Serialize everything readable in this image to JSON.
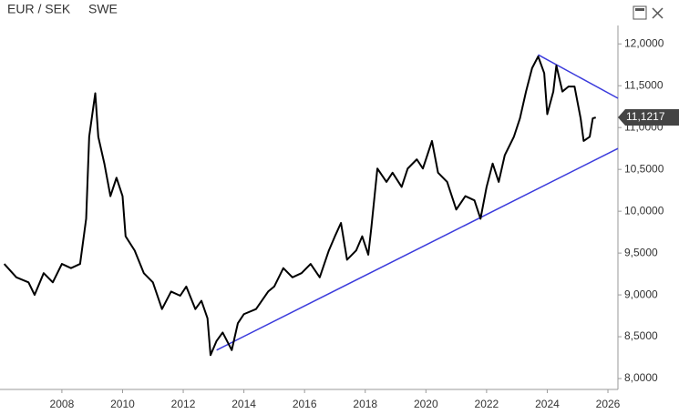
{
  "chart_data": {
    "type": "line",
    "title": "EUR / SEK",
    "subtitle": "SWE",
    "x": [
      2006.1,
      2006.5,
      2006.9,
      2007.1,
      2007.4,
      2007.7,
      2008.0,
      2008.3,
      2008.6,
      2008.8,
      2008.9,
      2009.1,
      2009.2,
      2009.4,
      2009.6,
      2009.8,
      2010.0,
      2010.1,
      2010.4,
      2010.7,
      2011.0,
      2011.3,
      2011.6,
      2011.9,
      2012.1,
      2012.4,
      2012.6,
      2012.8,
      2012.9,
      2013.1,
      2013.3,
      2013.6,
      2013.8,
      2014.0,
      2014.4,
      2014.8,
      2015.0,
      2015.3,
      2015.6,
      2015.9,
      2016.2,
      2016.5,
      2016.8,
      2017.0,
      2017.2,
      2017.4,
      2017.7,
      2017.9,
      2018.1,
      2018.2,
      2018.4,
      2018.7,
      2018.9,
      2019.2,
      2019.4,
      2019.7,
      2019.9,
      2020.0,
      2020.2,
      2020.4,
      2020.7,
      2021.0,
      2021.3,
      2021.6,
      2021.8,
      2022.0,
      2022.2,
      2022.4,
      2022.6,
      2022.9,
      2023.1,
      2023.3,
      2023.5,
      2023.7,
      2023.9,
      2024.0,
      2024.2,
      2024.3,
      2024.5,
      2024.7,
      2024.9,
      2025.1,
      2025.2,
      2025.4,
      2025.5,
      2025.6
    ],
    "series": [
      {
        "name": "EUR / SEK",
        "color": "#000000",
        "values": [
          9.37,
          9.21,
          9.15,
          9.0,
          9.26,
          9.15,
          9.37,
          9.32,
          9.37,
          9.91,
          10.89,
          11.41,
          10.89,
          10.57,
          10.18,
          10.4,
          10.18,
          9.7,
          9.53,
          9.26,
          9.15,
          8.83,
          9.04,
          8.99,
          9.1,
          8.83,
          8.93,
          8.72,
          8.28,
          8.45,
          8.55,
          8.34,
          8.66,
          8.77,
          8.83,
          9.04,
          9.1,
          9.32,
          9.21,
          9.26,
          9.37,
          9.21,
          9.53,
          9.7,
          9.86,
          9.42,
          9.53,
          9.7,
          9.48,
          9.8,
          10.51,
          10.35,
          10.46,
          10.29,
          10.51,
          10.62,
          10.51,
          10.62,
          10.84,
          10.46,
          10.35,
          10.02,
          10.18,
          10.13,
          9.91,
          10.29,
          10.57,
          10.35,
          10.67,
          10.89,
          11.11,
          11.43,
          11.71,
          11.85,
          11.65,
          11.16,
          11.43,
          11.74,
          11.43,
          11.49,
          11.49,
          11.11,
          10.84,
          10.89,
          11.11,
          11.12
        ]
      }
    ],
    "trendlines": [
      {
        "color": "#3b3bdc",
        "x": [
          2013.1,
          2026.33
        ],
        "values": [
          8.34,
          10.75
        ]
      },
      {
        "color": "#3b3bdc",
        "x": [
          2023.7,
          2026.33
        ],
        "values": [
          11.87,
          11.35
        ]
      }
    ],
    "last_price": {
      "value": 11.1217,
      "label": "11,1217"
    },
    "xlim": [
      2005.96,
      2026.33
    ],
    "xticks": [
      2008,
      2010,
      2012,
      2014,
      2016,
      2018,
      2020,
      2022,
      2024,
      2026
    ],
    "ylim": [
      7.87,
      12.22
    ],
    "yticks": [
      {
        "value": 8,
        "label": "8,0000"
      },
      {
        "value": 8.5,
        "label": "8,5000"
      },
      {
        "value": 9,
        "label": "9,0000"
      },
      {
        "value": 9.5,
        "label": "9,5000"
      },
      {
        "value": 10,
        "label": "10,0000"
      },
      {
        "value": 10.5,
        "label": "10,5000"
      },
      {
        "value": 11,
        "label": "11,0000"
      },
      {
        "value": 11.5,
        "label": "11,5000"
      },
      {
        "value": 12,
        "label": "12,0000"
      }
    ]
  }
}
